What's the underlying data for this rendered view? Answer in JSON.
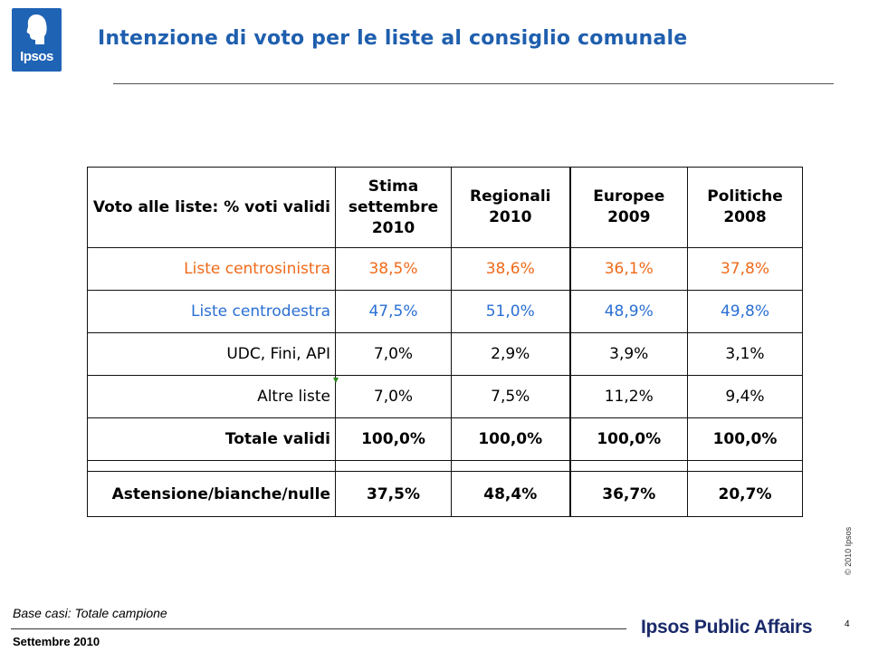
{
  "header": {
    "logo_text": "Ipsos",
    "title": "Intenzione di voto per le liste al consiglio comunale"
  },
  "table": {
    "columns": [
      "Voto alle liste: % voti validi",
      "Stima settembre 2010",
      "Regionali 2010",
      "Europee 2009",
      "Politiche 2008"
    ],
    "rows": [
      {
        "label": "Liste centrosinistra",
        "values": [
          "38,5%",
          "38,6%",
          "36,1%",
          "37,8%"
        ]
      },
      {
        "label": "Liste centrodestra",
        "values": [
          "47,5%",
          "51,0%",
          "48,9%",
          "49,8%"
        ]
      },
      {
        "label": "UDC, Fini, API",
        "values": [
          "7,0%",
          "2,9%",
          "3,9%",
          "3,1%"
        ]
      },
      {
        "label": "Altre liste",
        "values": [
          "7,0%",
          "7,5%",
          "11,2%",
          "9,4%"
        ]
      },
      {
        "label": "Totale validi",
        "values": [
          "100,0%",
          "100,0%",
          "100,0%",
          "100,0%"
        ]
      },
      {
        "label": "Astensione/bianche/nulle",
        "values": [
          "37,5%",
          "48,4%",
          "36,7%",
          "20,7%"
        ]
      }
    ]
  },
  "footer": {
    "base": "Base casi: Totale campione",
    "copyright": "© 2010 Ipsos",
    "date": "Settembre 2010",
    "brand": "Ipsos Public Affairs",
    "page": "4"
  },
  "colors": {
    "brand_blue": "#1f5fae",
    "centrosinistra": "#f06a1a",
    "centrodestra": "#2a6fd4"
  }
}
